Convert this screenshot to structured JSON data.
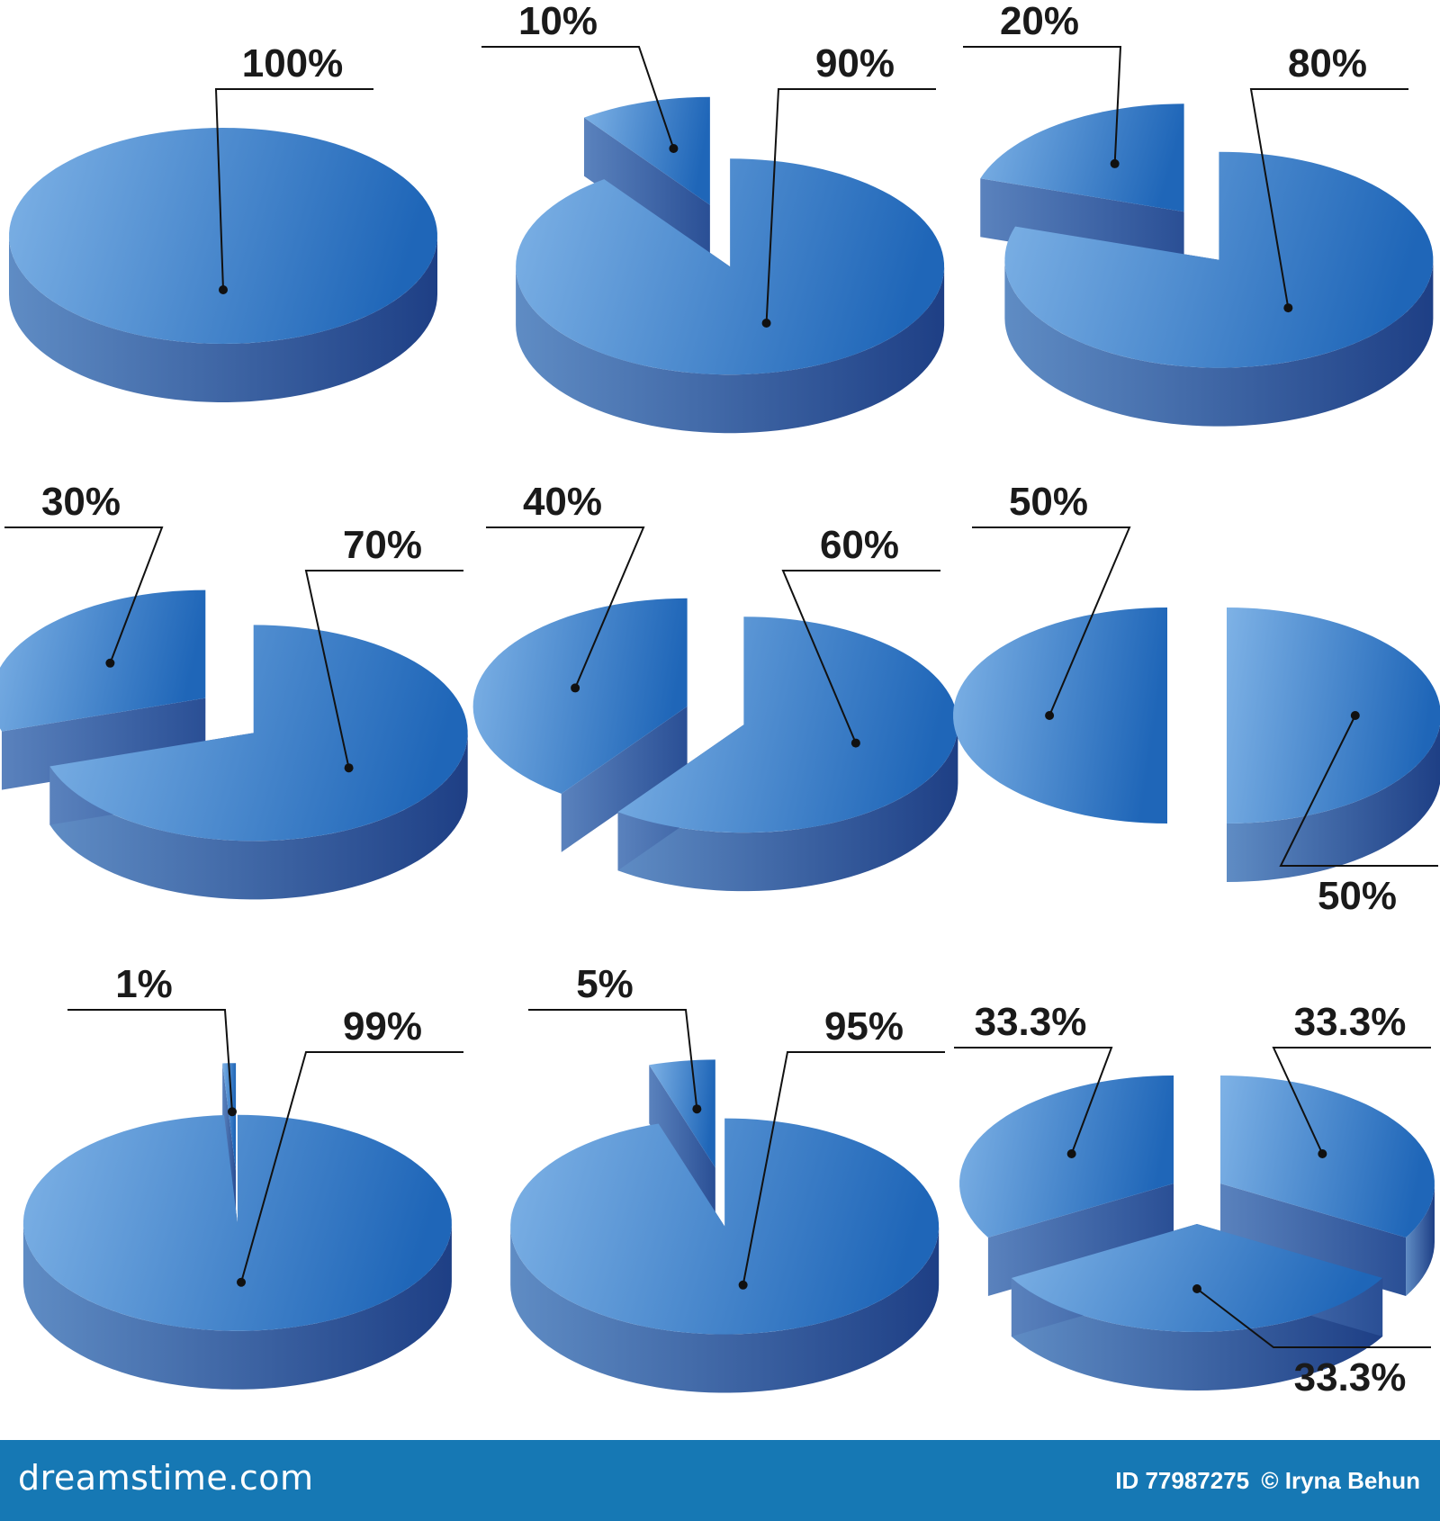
{
  "chart_data": [
    {
      "type": "pie",
      "values": [
        100
      ],
      "labels": [
        "100%"
      ]
    },
    {
      "type": "pie",
      "values": [
        10,
        90
      ],
      "labels": [
        "10%",
        "90%"
      ]
    },
    {
      "type": "pie",
      "values": [
        20,
        80
      ],
      "labels": [
        "20%",
        "80%"
      ]
    },
    {
      "type": "pie",
      "values": [
        30,
        70
      ],
      "labels": [
        "30%",
        "70%"
      ]
    },
    {
      "type": "pie",
      "values": [
        40,
        60
      ],
      "labels": [
        "40%",
        "60%"
      ]
    },
    {
      "type": "pie",
      "values": [
        50,
        50
      ],
      "labels": [
        "50%",
        "50%"
      ]
    },
    {
      "type": "pie",
      "values": [
        1,
        99
      ],
      "labels": [
        "1%",
        "99%"
      ]
    },
    {
      "type": "pie",
      "values": [
        5,
        95
      ],
      "labels": [
        "5%",
        "95%"
      ]
    },
    {
      "type": "pie",
      "values": [
        33.3,
        33.3,
        33.3
      ],
      "labels": [
        "33.3%",
        "33.3%",
        "33.3%"
      ]
    }
  ],
  "colors": {
    "top_light": "#7eb2e6",
    "top_dark": "#1f66b8",
    "side_light": "#5f8cc4",
    "side_dark": "#1e3f85",
    "cut": "#4a74b3",
    "footer_bg": "#1678b4"
  },
  "footer": {
    "brand": "dreamstime.com",
    "id_label": "ID 77987275",
    "copyright": "© Iryna Behun"
  }
}
